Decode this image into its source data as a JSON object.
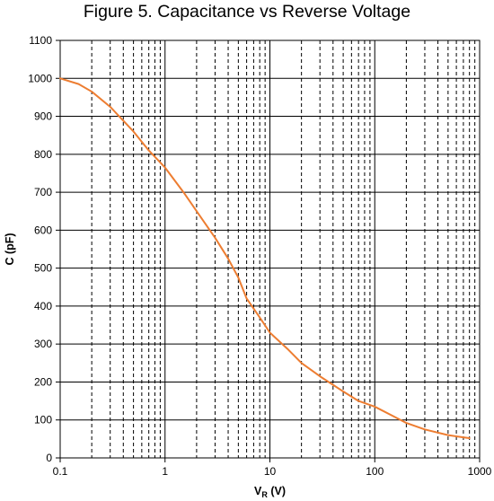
{
  "chart_data": {
    "type": "line",
    "title": "Figure 5. Capacitance vs Reverse Voltage",
    "xlabel": {
      "main": "V",
      "subscript": "R",
      "unit": " (V)"
    },
    "ylabel": "C  (pF)",
    "xscale": "log",
    "xlim": [
      0.1,
      1000
    ],
    "ylim": [
      0,
      1100
    ],
    "grid": {
      "major_y": true,
      "major_x": true,
      "minor_x": "dashed"
    },
    "x_tick_labels": [
      "0.1",
      "1",
      "10",
      "100",
      "1000"
    ],
    "y_tick_labels": [
      "0",
      "100",
      "200",
      "300",
      "400",
      "500",
      "600",
      "700",
      "800",
      "900",
      "1000",
      "1100"
    ],
    "series": [
      {
        "color": "#ED7D31",
        "x": [
          0.1,
          0.15,
          0.2,
          0.3,
          0.5,
          0.7,
          1,
          1.5,
          2,
          3,
          4,
          5,
          6,
          8,
          10,
          15,
          20,
          30,
          50,
          70,
          100,
          150,
          200,
          300,
          500,
          700,
          800
        ],
        "y": [
          1000,
          985,
          965,
          925,
          860,
          810,
          765,
          700,
          650,
          580,
          525,
          475,
          420,
          370,
          330,
          285,
          250,
          215,
          175,
          150,
          135,
          110,
          92,
          75,
          60,
          54,
          52
        ]
      }
    ]
  }
}
